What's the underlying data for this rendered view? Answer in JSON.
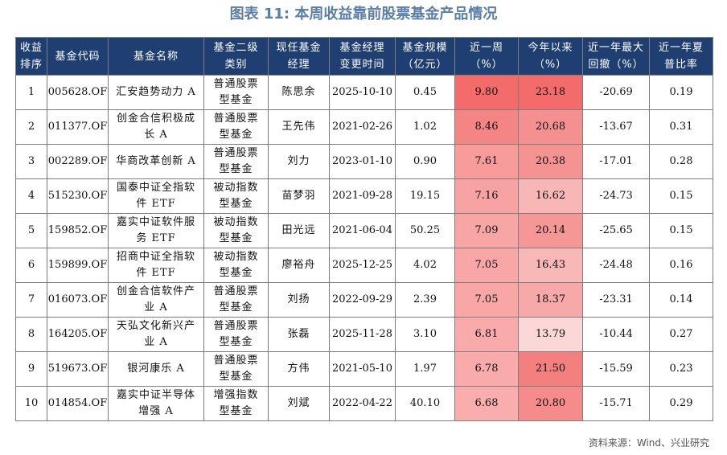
{
  "title": "图表 11: 本周收益靠前股票基金产品情况",
  "headers": [
    "收益\n排序",
    "基金代码",
    "基金名称",
    "基金二级\n类别",
    "现任基金\n经理",
    "基金经理\n变更时间",
    "基金规模\n（亿元）",
    "近一周\n（%）",
    "今年以来\n（%）",
    "近一年最大\n回撤（%）",
    "近一年夏\n普比率"
  ],
  "rows": [
    {
      "rank": "1",
      "code": "005628.OF",
      "name": "汇安趋势动力 A",
      "category": "普通股票\n型基金",
      "manager": "陈思余",
      "change_date": "2025-10-10",
      "scale": "0.45",
      "week": "9.80",
      "ytd": "23.18",
      "drawdown": "-20.69",
      "sharpe": "0.19"
    },
    {
      "rank": "2",
      "code": "011377.OF",
      "name": "创金合信积极成\n长 A",
      "category": "普通股票\n型基金",
      "manager": "王先伟",
      "change_date": "2021-02-26",
      "scale": "1.02",
      "week": "8.46",
      "ytd": "20.68",
      "drawdown": "-13.67",
      "sharpe": "0.31"
    },
    {
      "rank": "3",
      "code": "002289.OF",
      "name": "华商改革创新 A",
      "category": "普通股票\n型基金",
      "manager": "刘力",
      "change_date": "2023-01-10",
      "scale": "0.90",
      "week": "7.61",
      "ytd": "20.38",
      "drawdown": "-17.01",
      "sharpe": "0.28"
    },
    {
      "rank": "4",
      "code": "515230.OF",
      "name": "国泰中证全指软\n件 ETF",
      "category": "被动指数\n型基金",
      "manager": "苗梦羽",
      "change_date": "2021-09-28",
      "scale": "19.15",
      "week": "7.16",
      "ytd": "16.62",
      "drawdown": "-24.73",
      "sharpe": "0.15"
    },
    {
      "rank": "5",
      "code": "159852.OF",
      "name": "嘉实中证软件服\n务 ETF",
      "category": "被动指数\n型基金",
      "manager": "田光远",
      "change_date": "2021-06-04",
      "scale": "50.25",
      "week": "7.09",
      "ytd": "20.14",
      "drawdown": "-25.65",
      "sharpe": "0.15"
    },
    {
      "rank": "6",
      "code": "159899.OF",
      "name": "招商中证全指软\n件 ETF",
      "category": "被动指数\n型基金",
      "manager": "廖裕舟",
      "change_date": "2025-12-25",
      "scale": "4.02",
      "week": "7.05",
      "ytd": "16.43",
      "drawdown": "-24.48",
      "sharpe": "0.16"
    },
    {
      "rank": "7",
      "code": "016073.OF",
      "name": "创金合信软件产\n业 A",
      "category": "普通股票\n型基金",
      "manager": "刘扬",
      "change_date": "2022-09-29",
      "scale": "2.39",
      "week": "7.05",
      "ytd": "18.37",
      "drawdown": "-23.31",
      "sharpe": "0.14"
    },
    {
      "rank": "8",
      "code": "164205.OF",
      "name": "天弘文化新兴产\n业 A",
      "category": "普通股票\n型基金",
      "manager": "张磊",
      "change_date": "2025-11-28",
      "scale": "3.10",
      "week": "6.81",
      "ytd": "13.79",
      "drawdown": "-10.44",
      "sharpe": "0.27"
    },
    {
      "rank": "9",
      "code": "519673.OF",
      "name": "银河康乐 A",
      "category": "普通股票\n型基金",
      "manager": "方伟",
      "change_date": "2021-05-10",
      "scale": "1.97",
      "week": "6.78",
      "ytd": "21.50",
      "drawdown": "-15.59",
      "sharpe": "0.23"
    },
    {
      "rank": "10",
      "code": "014854.OF",
      "name": "嘉实中证半导体\n增强 A",
      "category": "增强指数\n型基金",
      "manager": "刘斌",
      "change_date": "2022-04-22",
      "scale": "40.10",
      "week": "6.68",
      "ytd": "20.80",
      "drawdown": "-15.71",
      "sharpe": "0.29"
    }
  ],
  "heat_colors": {
    "week": [
      "#f36b6b",
      "#f58484",
      "#f79b9b",
      "#f8a3a3",
      "#f8a5a5",
      "#f8a6a6",
      "#f8a6a6",
      "#f9aaaa",
      "#f9abab",
      "#f9adad"
    ],
    "ytd": [
      "#f36b6b",
      "#f59090",
      "#f59292",
      "#f8b6b6",
      "#f59797",
      "#f8b8b8",
      "#f7a8a8",
      "#fbd7d7",
      "#f47f7f",
      "#f58b8b"
    ]
  },
  "source": "资料来源：Wind、兴业研究"
}
